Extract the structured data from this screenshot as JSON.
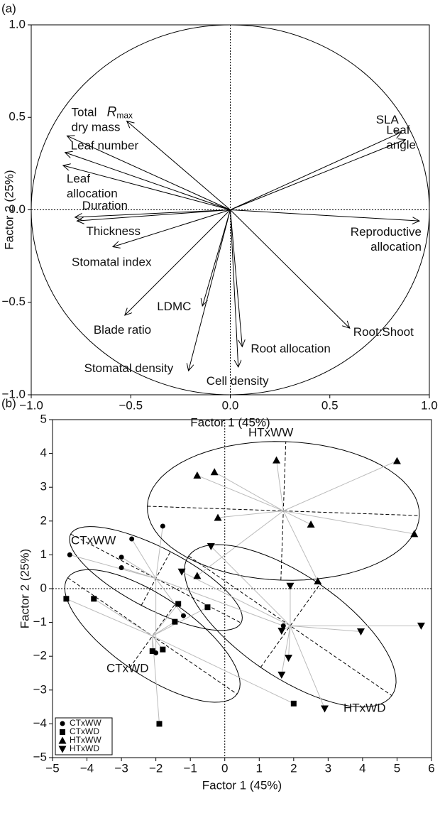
{
  "chart_data": [
    {
      "type": "biplot",
      "panel_label": "(a)",
      "x_label": "Factor 1 (45%)",
      "y_label": "Factor 2 (25%)",
      "xlim": [
        -1,
        1
      ],
      "ylim": [
        -1,
        1
      ],
      "xticks": [
        {
          "value": -1,
          "label": "−1.0"
        },
        {
          "value": -0.5,
          "label": "−0.5"
        },
        {
          "value": 0,
          "label": "0.0"
        },
        {
          "value": 0.5,
          "label": "0.5"
        },
        {
          "value": 1,
          "label": "1.0"
        }
      ],
      "yticks": [
        {
          "value": -1,
          "label": "−1.0"
        },
        {
          "value": -0.5,
          "label": "−0.5"
        },
        {
          "value": 0,
          "label": "0.0"
        },
        {
          "value": 0.5,
          "label": "0.5"
        },
        {
          "value": 1,
          "label": "1.0"
        }
      ],
      "color": "#000000",
      "vectors": [
        {
          "label": [
            "R"
          ],
          "subscript": "max",
          "x": -0.52,
          "y": 0.48
        },
        {
          "label": [
            "Total",
            "dry mass"
          ],
          "x": -0.82,
          "y": 0.4
        },
        {
          "label": [
            "Leaf number"
          ],
          "x": -0.83,
          "y": 0.31
        },
        {
          "label": [
            "Leaf",
            "allocation"
          ],
          "x": -0.84,
          "y": 0.24
        },
        {
          "label": [
            "Duration"
          ],
          "x": -0.78,
          "y": -0.04
        },
        {
          "label": [
            "Thickness"
          ],
          "x": -0.77,
          "y": -0.06
        },
        {
          "label": [
            "Stomatal index"
          ],
          "x": -0.59,
          "y": -0.2
        },
        {
          "label": [
            "Blade ratio"
          ],
          "x": -0.53,
          "y": -0.57
        },
        {
          "label": [
            "LDMC"
          ],
          "x": -0.14,
          "y": -0.52
        },
        {
          "label": [
            "Stomatal density"
          ],
          "x": -0.21,
          "y": -0.87
        },
        {
          "label": [
            "Root allocation"
          ],
          "x": 0.06,
          "y": -0.74
        },
        {
          "label": [
            "Cell density"
          ],
          "x": 0.04,
          "y": -0.85
        },
        {
          "label": [
            "Root:Shoot"
          ],
          "x": 0.6,
          "y": -0.64
        },
        {
          "label": [
            "Reproductive",
            "allocation"
          ],
          "x": 0.95,
          "y": -0.06
        },
        {
          "label": [
            "SLA"
          ],
          "x": 0.86,
          "y": 0.42
        },
        {
          "label": [
            "Leaf",
            "angle"
          ],
          "x": 0.88,
          "y": 0.38
        }
      ]
    },
    {
      "type": "scatter",
      "panel_label": "(b)",
      "x_label": "Factor 1 (45%)",
      "y_label": "Factor 2 (25%)",
      "xlim": [
        -5,
        6
      ],
      "ylim": [
        -5,
        5
      ],
      "xticks": [
        {
          "value": -5,
          "label": "−5"
        },
        {
          "value": -4,
          "label": "−4"
        },
        {
          "value": -3,
          "label": "−3"
        },
        {
          "value": -2,
          "label": "−2"
        },
        {
          "value": -1,
          "label": "−1"
        },
        0,
        1,
        2,
        3,
        4,
        5,
        6
      ],
      "yticks": [
        {
          "value": -5,
          "label": "−5"
        },
        {
          "value": -4,
          "label": "−4"
        },
        {
          "value": -3,
          "label": "−3"
        },
        {
          "value": -2,
          "label": "−2"
        },
        {
          "value": -1,
          "label": "−1"
        },
        0,
        1,
        2,
        3,
        4,
        5
      ],
      "legend": "lower left",
      "series": [
        {
          "name": "CTxWW",
          "marker": "circle",
          "color": "#000000",
          "x": [
            -4.5,
            -3.0,
            -3.0,
            -2.7,
            -1.8,
            -1.2,
            -2.0,
            1.7
          ],
          "y": [
            1.0,
            0.93,
            0.62,
            1.47,
            1.85,
            -0.8,
            -1.9,
            -1.1
          ],
          "ellipse": {
            "center": [
              -2.0,
              0.3
            ],
            "radii": [
              2.8,
              0.9
            ],
            "angle": -28
          }
        },
        {
          "name": "CTxWD",
          "marker": "square",
          "color": "#000000",
          "x": [
            -4.6,
            -3.8,
            -2.1,
            -1.8,
            -1.45,
            -1.35,
            -0.5,
            2.0,
            -1.9
          ],
          "y": [
            -0.3,
            -0.3,
            -1.85,
            -1.8,
            -0.98,
            -0.45,
            -0.55,
            -3.4,
            -4.0
          ],
          "ellipse": {
            "center": [
              -2.1,
              -1.4
            ],
            "radii": [
              3.0,
              1.15
            ],
            "angle": -35
          }
        },
        {
          "name": "HTxWW",
          "marker": "triangle-up",
          "color": "#000000",
          "x": [
            -0.8,
            -0.3,
            1.5,
            5.0,
            -0.2,
            2.5,
            5.5,
            -0.8,
            2.7
          ],
          "y": [
            3.35,
            3.45,
            3.8,
            3.78,
            2.1,
            1.9,
            1.62,
            0.38,
            0.22
          ],
          "ellipse": {
            "center": [
              1.7,
              2.3
            ],
            "radii": [
              3.95,
              2.05
            ],
            "angle": -2
          }
        },
        {
          "name": "HTxWD",
          "marker": "triangle-down",
          "color": "#000000",
          "x": [
            -1.25,
            -0.4,
            1.9,
            1.65,
            1.85,
            1.65,
            2.9,
            3.95,
            5.7
          ],
          "y": [
            0.5,
            1.25,
            0.08,
            -1.25,
            -2.05,
            -2.55,
            -3.55,
            -1.27,
            -1.1
          ],
          "ellipse": {
            "center": [
              1.9,
              -1.1
            ],
            "radii": [
              3.6,
              1.5
            ],
            "angle": -35
          }
        }
      ]
    }
  ]
}
